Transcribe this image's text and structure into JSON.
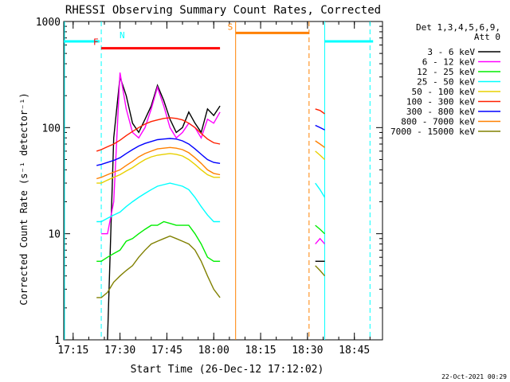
{
  "chart_data": {
    "type": "line",
    "title": "RHESSI Observing Summary Count Rates, Corrected",
    "xlabel": "Start Time (26-Dec-12 17:12:02)",
    "ylabel": "Corrected Count Rate (s⁻¹ detector⁻¹)",
    "yscale": "log",
    "ylim": [
      1,
      1000
    ],
    "xlim_minutes_after_17_12_02": [
      0,
      102
    ],
    "xticks": [
      {
        "label": "17:15",
        "t": 3
      },
      {
        "label": "17:30",
        "t": 18
      },
      {
        "label": "17:45",
        "t": 33
      },
      {
        "label": "18:00",
        "t": 48
      },
      {
        "label": "18:15",
        "t": 63
      },
      {
        "label": "18:30",
        "t": 78
      },
      {
        "label": "18:45",
        "t": 93
      }
    ],
    "yticks": [
      {
        "label": "1",
        "v": 1
      },
      {
        "label": "10",
        "v": 10
      },
      {
        "label": "100",
        "v": 100
      },
      {
        "label": "1000",
        "v": 1000
      }
    ],
    "legend": {
      "placement": "right",
      "header": [
        "Det 1,3,4,5,6,9,",
        "Att 0"
      ]
    },
    "time_x_minutes": [
      10.5,
      12,
      14,
      16,
      18,
      20,
      22,
      24,
      26,
      28,
      30,
      32,
      34,
      36,
      38,
      40,
      42,
      44,
      46,
      48,
      50,
      52,
      54
    ],
    "series": [
      {
        "name": "3 - 6 keV",
        "color": "#000000",
        "values": [
          null,
          null,
          1,
          80,
          300,
          200,
          110,
          90,
          120,
          160,
          250,
          180,
          120,
          90,
          100,
          140,
          110,
          90,
          150,
          130,
          160,
          null,
          null
        ],
        "values_after_gap": [
          5.5,
          5.5,
          5.5
        ]
      },
      {
        "name": "6 - 12 keV",
        "color": "#ff00ff",
        "values": [
          null,
          10,
          10,
          20,
          330,
          150,
          90,
          80,
          100,
          150,
          240,
          160,
          100,
          80,
          90,
          110,
          100,
          80,
          120,
          110,
          140,
          null,
          null
        ],
        "values_after_gap": [
          8.0,
          9.0,
          8.0
        ]
      },
      {
        "name": "12 - 25 keV",
        "color": "#00ee00",
        "values": [
          5.5,
          5.5,
          6,
          6.5,
          7,
          8.5,
          9,
          10,
          11,
          12,
          12,
          13,
          12.5,
          12,
          12,
          12,
          10,
          8,
          6,
          5.5,
          5.5,
          null,
          null
        ],
        "values_after_gap": [
          12,
          11,
          10
        ]
      },
      {
        "name": "25 - 50 keV",
        "color": "#00ffff",
        "values": [
          13,
          13,
          14,
          15,
          16,
          18,
          20,
          22,
          24,
          26,
          28,
          29,
          30,
          29,
          28,
          26,
          22,
          18,
          15,
          13,
          13,
          null,
          null
        ],
        "values_after_gap": [
          30,
          26,
          22
        ]
      },
      {
        "name": "50 - 100 keV",
        "color": "#e8d000",
        "values": [
          30,
          30,
          32,
          34,
          36,
          39,
          42,
          46,
          50,
          53,
          55,
          56,
          57,
          56,
          54,
          50,
          45,
          40,
          36,
          34,
          34,
          null,
          null
        ],
        "values_after_gap": [
          60,
          55,
          50
        ]
      },
      {
        "name": "100 - 300 keV",
        "color": "#ff2000",
        "values": [
          60,
          62,
          66,
          70,
          76,
          84,
          92,
          100,
          108,
          114,
          118,
          122,
          124,
          122,
          118,
          110,
          100,
          88,
          78,
          72,
          70,
          null,
          null
        ],
        "values_after_gap": [
          150,
          145,
          135
        ]
      },
      {
        "name": "300 - 800 keV",
        "color": "#0000ff",
        "values": [
          44,
          45,
          47,
          49,
          52,
          57,
          62,
          67,
          71,
          74,
          77,
          78,
          79,
          78,
          75,
          70,
          63,
          56,
          50,
          47,
          46,
          null,
          null
        ],
        "values_after_gap": [
          105,
          100,
          95
        ]
      },
      {
        "name": "800 - 7000 keV",
        "color": "#ff8000",
        "values": [
          33,
          34,
          36,
          38,
          40,
          44,
          48,
          53,
          57,
          60,
          63,
          64,
          65,
          64,
          62,
          58,
          52,
          46,
          40,
          37,
          36,
          null,
          null
        ],
        "values_after_gap": [
          75,
          70,
          65
        ]
      },
      {
        "name": "7000 - 15000 keV",
        "color": "#808000",
        "values": [
          2.5,
          2.5,
          2.8,
          3.5,
          4,
          4.5,
          5,
          6,
          7,
          8,
          8.5,
          9,
          9.5,
          9,
          8.5,
          8,
          7,
          5.5,
          4,
          3,
          2.5,
          null,
          null
        ],
        "values_after_gap": [
          5,
          4.5,
          4
        ]
      }
    ],
    "time_x_after_gap_minutes": [
      80.5,
      82,
      83.5
    ],
    "flags": [
      {
        "label": "N",
        "color": "#00ffff",
        "t_start": 0,
        "t_end": 11.5,
        "level": 650,
        "t_start2": 83.5,
        "t_end2": 99,
        "dashed_at": [
          12,
          98
        ]
      },
      {
        "label": "F",
        "color": "#ff0000",
        "t_start": 12,
        "t_end": 50,
        "level": 560
      },
      {
        "label": "S",
        "color": "#ff8000",
        "t_start": 55,
        "t_end": 78.5,
        "level": 780,
        "dashed_at": [
          78.5
        ]
      }
    ],
    "grid": false
  },
  "footer": {
    "date_stamp": "22-Oct-2021 00:29"
  }
}
